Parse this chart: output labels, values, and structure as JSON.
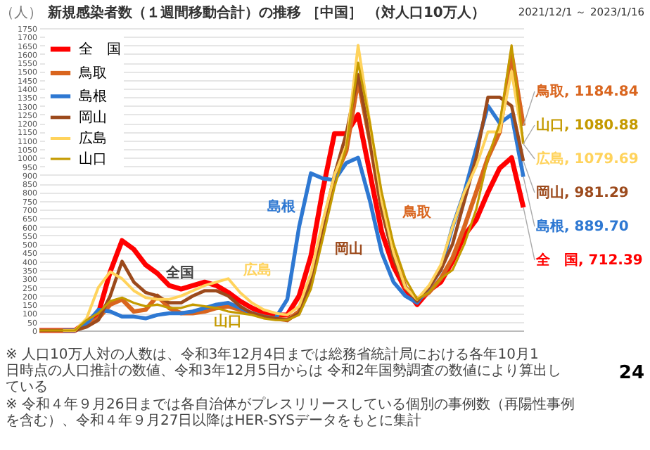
{
  "chart_data": {
    "type": "line",
    "title": "新規感染者数（１週間移動合計）の推移 ［中国］ （対人口10万人）",
    "subtitle": "2021/12/1 ～ 2023/1/16",
    "ylabel": "（人）",
    "categories": [
      null,
      null,
      null,
      null,
      null,
      null,
      null,
      null,
      null,
      null,
      null,
      null,
      null,
      null,
      null,
      null,
      null,
      null,
      null,
      null,
      null,
      null,
      null,
      null,
      null,
      null,
      null,
      null,
      null,
      null,
      null,
      null,
      null,
      null,
      null,
      null,
      null,
      null,
      null,
      null,
      null,
      null
    ],
    "ylim": [
      0,
      1750
    ],
    "yticks": [
      0,
      50,
      100,
      150,
      200,
      250,
      300,
      350,
      400,
      450,
      500,
      550,
      600,
      650,
      700,
      750,
      800,
      850,
      900,
      950,
      1000,
      1050,
      1100,
      1150,
      1200,
      1250,
      1300,
      1350,
      1400,
      1450,
      1500,
      1550,
      1600,
      1650,
      1700,
      1750
    ],
    "grid": "y",
    "legend": "top left",
    "tick_labels": "y",
    "line_style": "solid",
    "marker": "none",
    "series": [
      {
        "name": "全　国",
        "color": "#ff0000",
        "values": [
          0,
          0,
          0,
          0,
          50,
          100,
          340,
          520,
          470,
          380,
          330,
          260,
          240,
          260,
          280,
          260,
          220,
          170,
          130,
          100,
          90,
          90,
          200,
          430,
          810,
          1140,
          1140,
          1250,
          910,
          570,
          370,
          240,
          150,
          230,
          280,
          400,
          550,
          640,
          800,
          940,
          1000,
          712.39
        ],
        "value_labels": [
          null,
          null,
          null,
          null,
          null,
          null,
          null,
          null,
          null,
          null,
          null,
          null,
          null,
          null,
          null,
          null,
          null,
          null,
          null,
          null,
          null,
          null,
          null,
          null,
          null,
          null,
          null,
          null,
          null,
          null,
          null,
          null,
          null,
          null,
          null,
          null,
          null,
          null,
          null,
          null,
          null,
          "全　国, 712.39"
        ]
      },
      {
        "name": "鳥取",
        "color": "#d9651e",
        "values": [
          0,
          0,
          0,
          0,
          30,
          70,
          150,
          180,
          110,
          120,
          200,
          130,
          100,
          100,
          110,
          130,
          140,
          120,
          100,
          80,
          70,
          60,
          110,
          280,
          580,
          880,
          1040,
          1450,
          1100,
          700,
          450,
          250,
          180,
          220,
          300,
          420,
          600,
          800,
          1000,
          1150,
          1600,
          1184.84
        ],
        "value_labels": [
          null,
          null,
          null,
          null,
          null,
          null,
          null,
          null,
          null,
          null,
          null,
          null,
          null,
          null,
          null,
          null,
          null,
          null,
          null,
          null,
          null,
          null,
          null,
          null,
          null,
          null,
          null,
          null,
          null,
          null,
          null,
          null,
          null,
          null,
          null,
          null,
          null,
          null,
          null,
          null,
          null,
          "鳥取, 1184.84"
        ]
      },
      {
        "name": "島根",
        "color": "#2e78d2",
        "values": [
          null,
          null,
          0,
          0,
          40,
          120,
          110,
          80,
          80,
          70,
          90,
          100,
          100,
          110,
          130,
          150,
          160,
          130,
          100,
          80,
          70,
          180,
          600,
          910,
          880,
          870,
          970,
          1000,
          750,
          450,
          280,
          200,
          160,
          250,
          350,
          600,
          800,
          1050,
          1300,
          1200,
          1250,
          889.7
        ],
        "value_labels": [
          null,
          null,
          null,
          null,
          null,
          null,
          null,
          null,
          null,
          null,
          null,
          null,
          null,
          null,
          null,
          null,
          null,
          null,
          null,
          null,
          null,
          null,
          null,
          null,
          null,
          null,
          null,
          null,
          null,
          null,
          null,
          null,
          null,
          null,
          null,
          null,
          null,
          null,
          null,
          null,
          null,
          "島根, 889.70"
        ]
      },
      {
        "name": "岡山",
        "color": "#9c4a1c",
        "values": [
          0,
          0,
          0,
          0,
          20,
          60,
          200,
          400,
          280,
          220,
          200,
          160,
          160,
          200,
          230,
          230,
          200,
          140,
          100,
          80,
          70,
          60,
          100,
          280,
          600,
          900,
          1140,
          1480,
          1100,
          700,
          420,
          250,
          170,
          250,
          350,
          500,
          750,
          1000,
          1350,
          1350,
          1300,
          981.29
        ],
        "value_labels": [
          null,
          null,
          null,
          null,
          null,
          null,
          null,
          null,
          null,
          null,
          null,
          null,
          null,
          null,
          null,
          null,
          null,
          null,
          null,
          null,
          null,
          null,
          null,
          null,
          null,
          null,
          null,
          null,
          null,
          null,
          null,
          null,
          null,
          null,
          null,
          null,
          null,
          null,
          null,
          null,
          null,
          "岡山, 981.29"
        ]
      },
      {
        "name": "広島",
        "color": "#ffd35c",
        "values": [
          null,
          null,
          0,
          0,
          70,
          250,
          340,
          300,
          230,
          190,
          180,
          180,
          200,
          230,
          260,
          280,
          300,
          220,
          160,
          120,
          100,
          90,
          140,
          330,
          630,
          900,
          1070,
          1650,
          1200,
          750,
          450,
          250,
          180,
          260,
          380,
          600,
          800,
          950,
          1150,
          1150,
          1500,
          1079.69
        ],
        "value_labels": [
          null,
          null,
          null,
          null,
          null,
          null,
          null,
          null,
          null,
          null,
          null,
          null,
          null,
          null,
          null,
          null,
          null,
          null,
          null,
          null,
          null,
          null,
          null,
          null,
          null,
          null,
          null,
          null,
          null,
          null,
          null,
          null,
          null,
          null,
          null,
          null,
          null,
          null,
          null,
          null,
          null,
          "広島, 1079.69"
        ]
      },
      {
        "name": "山口",
        "color": "#c49a00",
        "values": [
          0,
          0,
          0,
          0,
          60,
          100,
          170,
          190,
          160,
          140,
          150,
          130,
          130,
          150,
          140,
          130,
          110,
          100,
          90,
          70,
          60,
          60,
          90,
          240,
          530,
          830,
          1060,
          1550,
          1200,
          800,
          500,
          300,
          180,
          220,
          300,
          350,
          500,
          700,
          1000,
          1200,
          1650,
          1080.88
        ],
        "value_labels": [
          null,
          null,
          null,
          null,
          null,
          null,
          null,
          null,
          null,
          null,
          null,
          null,
          null,
          null,
          null,
          null,
          null,
          null,
          null,
          null,
          null,
          null,
          null,
          null,
          null,
          null,
          null,
          null,
          null,
          null,
          null,
          null,
          null,
          null,
          null,
          null,
          null,
          null,
          null,
          null,
          null,
          "山口, 1080.88"
        ]
      }
    ],
    "annotations": [
      "全国",
      "広島",
      "山口",
      "島根",
      "鳥取",
      "岡山",
      "※ 人口10万人対の人数は、令和3年12月4日までは総務省統計局における各年10月1日時点の人口推計の数値、令和3年12月5日からは 令和2年国勢調査の数値により算出している",
      "※ 令和４年９月26日までは各自治体がプレスリリースしている個別の事例数（再陽性事例を含む）、令和４年９月27日以降はHER-SYSデータをもとに集計",
      "24"
    ]
  }
}
